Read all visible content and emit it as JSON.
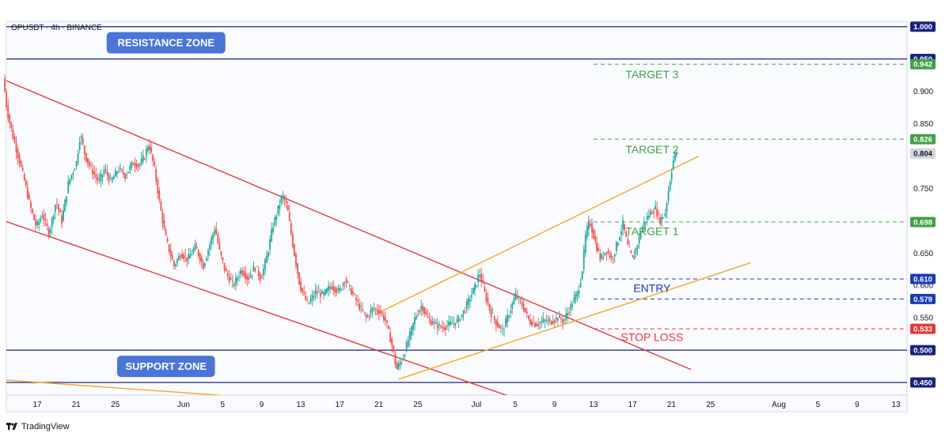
{
  "header": {
    "symbol": "OPUSDT · 4h · BINANCE"
  },
  "footer": {
    "brand": "TradingView",
    "logo_icon": "tradingview-logo-icon"
  },
  "chart_data": {
    "type": "candlestick",
    "title": "OPUSDT · 4h · BINANCE",
    "price_axis": {
      "ylim": [
        0.4305,
        1.0082
      ],
      "ticks": [
        "0.900",
        "0.850",
        "0.750",
        "0.650",
        "0.600",
        "0.550"
      ]
    },
    "time_axis": {
      "ticks": [
        {
          "label": "17",
          "day": 0
        },
        {
          "label": "21",
          "day": 4
        },
        {
          "label": "25",
          "day": 8
        },
        {
          "label": "Jun",
          "day": 15
        },
        {
          "label": "5",
          "day": 19
        },
        {
          "label": "9",
          "day": 23
        },
        {
          "label": "13",
          "day": 27
        },
        {
          "label": "17",
          "day": 31
        },
        {
          "label": "21",
          "day": 35
        },
        {
          "label": "25",
          "day": 39
        },
        {
          "label": "Jul",
          "day": 45
        },
        {
          "label": "5",
          "day": 49
        },
        {
          "label": "9",
          "day": 53
        },
        {
          "label": "13",
          "day": 57
        },
        {
          "label": "17",
          "day": 61
        },
        {
          "label": "21",
          "day": 65
        },
        {
          "label": "25",
          "day": 69
        },
        {
          "label": "Aug",
          "day": 76
        },
        {
          "label": "5",
          "day": 80
        },
        {
          "label": "9",
          "day": 84
        },
        {
          "label": "13",
          "day": 88
        }
      ]
    },
    "price_series": [
      [
        -3.4,
        0.92
      ],
      [
        -3.0,
        0.87
      ],
      [
        -2.4,
        0.83
      ],
      [
        -1.7,
        0.79
      ],
      [
        -1.2,
        0.76
      ],
      [
        -0.6,
        0.72
      ],
      [
        0.0,
        0.69
      ],
      [
        0.6,
        0.71
      ],
      [
        1.3,
        0.68
      ],
      [
        2.0,
        0.73
      ],
      [
        2.6,
        0.7
      ],
      [
        3.3,
        0.76
      ],
      [
        4.1,
        0.79
      ],
      [
        4.5,
        0.835
      ],
      [
        5.0,
        0.8
      ],
      [
        5.6,
        0.78
      ],
      [
        6.4,
        0.76
      ],
      [
        7.0,
        0.78
      ],
      [
        7.6,
        0.76
      ],
      [
        8.4,
        0.78
      ],
      [
        9.1,
        0.77
      ],
      [
        9.9,
        0.79
      ],
      [
        10.5,
        0.785
      ],
      [
        11.1,
        0.8
      ],
      [
        11.5,
        0.82
      ],
      [
        12.1,
        0.78
      ],
      [
        12.7,
        0.72
      ],
      [
        13.3,
        0.67
      ],
      [
        14.1,
        0.63
      ],
      [
        14.8,
        0.65
      ],
      [
        15.5,
        0.64
      ],
      [
        16.3,
        0.66
      ],
      [
        17.1,
        0.63
      ],
      [
        17.7,
        0.66
      ],
      [
        18.3,
        0.69
      ],
      [
        18.8,
        0.65
      ],
      [
        19.4,
        0.62
      ],
      [
        20.2,
        0.6
      ],
      [
        21.0,
        0.625
      ],
      [
        21.7,
        0.61
      ],
      [
        22.4,
        0.63
      ],
      [
        23.0,
        0.61
      ],
      [
        23.7,
        0.65
      ],
      [
        24.2,
        0.69
      ],
      [
        24.8,
        0.72
      ],
      [
        25.2,
        0.74
      ],
      [
        25.7,
        0.72
      ],
      [
        26.3,
        0.66
      ],
      [
        27.0,
        0.6
      ],
      [
        27.8,
        0.57
      ],
      [
        28.6,
        0.59
      ],
      [
        29.4,
        0.585
      ],
      [
        30.2,
        0.6
      ],
      [
        31.0,
        0.59
      ],
      [
        31.6,
        0.61
      ],
      [
        32.3,
        0.59
      ],
      [
        33.0,
        0.57
      ],
      [
        33.8,
        0.55
      ],
      [
        34.5,
        0.565
      ],
      [
        35.2,
        0.56
      ],
      [
        35.8,
        0.545
      ],
      [
        36.4,
        0.51
      ],
      [
        36.9,
        0.47
      ],
      [
        37.6,
        0.49
      ],
      [
        38.2,
        0.52
      ],
      [
        38.8,
        0.55
      ],
      [
        39.5,
        0.57
      ],
      [
        40.0,
        0.55
      ],
      [
        40.8,
        0.54
      ],
      [
        41.6,
        0.535
      ],
      [
        42.4,
        0.54
      ],
      [
        43.2,
        0.545
      ],
      [
        43.8,
        0.56
      ],
      [
        44.4,
        0.58
      ],
      [
        45.0,
        0.6
      ],
      [
        45.4,
        0.62
      ],
      [
        45.9,
        0.59
      ],
      [
        46.5,
        0.56
      ],
      [
        47.2,
        0.54
      ],
      [
        47.8,
        0.53
      ],
      [
        48.5,
        0.56
      ],
      [
        49.1,
        0.585
      ],
      [
        49.8,
        0.57
      ],
      [
        50.5,
        0.545
      ],
      [
        51.2,
        0.54
      ],
      [
        52.0,
        0.545
      ],
      [
        52.8,
        0.545
      ],
      [
        53.4,
        0.55
      ],
      [
        54.0,
        0.545
      ],
      [
        54.5,
        0.56
      ],
      [
        55.0,
        0.575
      ],
      [
        55.5,
        0.59
      ],
      [
        55.9,
        0.62
      ],
      [
        56.3,
        0.68
      ],
      [
        56.7,
        0.7
      ],
      [
        57.3,
        0.665
      ],
      [
        57.8,
        0.64
      ],
      [
        58.4,
        0.655
      ],
      [
        59.0,
        0.64
      ],
      [
        59.6,
        0.67
      ],
      [
        60.1,
        0.695
      ],
      [
        60.6,
        0.66
      ],
      [
        61.1,
        0.64
      ],
      [
        61.7,
        0.67
      ],
      [
        62.2,
        0.695
      ],
      [
        62.8,
        0.71
      ],
      [
        63.4,
        0.72
      ],
      [
        63.9,
        0.7
      ],
      [
        64.4,
        0.71
      ],
      [
        64.8,
        0.75
      ],
      [
        65.2,
        0.79
      ],
      [
        65.6,
        0.81
      ]
    ],
    "current_price": 0.804,
    "levels": [
      {
        "name": "resistance-top",
        "value": 1.0,
        "label": "1.000",
        "style": "solid",
        "color": "#1a237e"
      },
      {
        "name": "resistance-bottom",
        "value": 0.95,
        "label": "0.950",
        "style": "solid",
        "color": "#1a237e"
      },
      {
        "name": "target-3",
        "value": 0.942,
        "label": "0.942",
        "style": "dashed",
        "color": "#43a047",
        "from_day": 57
      },
      {
        "name": "target-2",
        "value": 0.826,
        "label": "0.826",
        "style": "dashed",
        "color": "#43a047",
        "from_day": 57
      },
      {
        "name": "target-1",
        "value": 0.698,
        "label": "0.698",
        "style": "dashed",
        "color": "#43a047",
        "from_day": 57
      },
      {
        "name": "entry-top",
        "value": 0.61,
        "label": "0.610",
        "style": "dashed",
        "color": "#1a3bb3",
        "from_day": 57
      },
      {
        "name": "entry-bottom",
        "value": 0.579,
        "label": "0.579",
        "style": "dashed",
        "color": "#1a3bb3",
        "from_day": 57
      },
      {
        "name": "stop-loss",
        "value": 0.533,
        "label": "0.533",
        "style": "dashed",
        "color": "#e53935",
        "from_day": 57
      },
      {
        "name": "support-top",
        "value": 0.5,
        "label": "0.500",
        "style": "solid",
        "color": "#1a237e"
      },
      {
        "name": "support-bottom",
        "value": 0.45,
        "label": "0.450",
        "style": "solid",
        "color": "#1a237e"
      }
    ],
    "trendlines": [
      {
        "name": "channel-upper",
        "color": "#e53935",
        "points": [
          [
            -3.4,
            0.918
          ],
          [
            67.0,
            0.47
          ]
        ]
      },
      {
        "name": "channel-lower",
        "color": "#e53935",
        "points": [
          [
            -3.4,
            0.7
          ],
          [
            48.5,
            0.428
          ]
        ]
      },
      {
        "name": "rising-upper",
        "color": "#f5a623",
        "points": [
          [
            34.6,
            0.555
          ],
          [
            67.8,
            0.8
          ]
        ]
      },
      {
        "name": "rising-lower",
        "color": "#f5a623",
        "points": [
          [
            37.0,
            0.455
          ],
          [
            73.1,
            0.635
          ]
        ]
      },
      {
        "name": "old-support",
        "color": "#f5a623",
        "points": [
          [
            -3.4,
            0.454
          ],
          [
            19.0,
            0.43
          ]
        ]
      }
    ],
    "annotations": [
      {
        "name": "target-3-label",
        "text": "TARGET 3",
        "day": 63.0,
        "value": 0.92,
        "color": "#43a047"
      },
      {
        "name": "target-2-label",
        "text": "TARGET 2",
        "day": 63.0,
        "value": 0.804,
        "color": "#43a047"
      },
      {
        "name": "target-1-label",
        "text": "TARGET 1",
        "day": 63.0,
        "value": 0.678,
        "color": "#43a047"
      },
      {
        "name": "entry-label",
        "text": "ENTRY",
        "day": 63.0,
        "value": 0.59,
        "color": "#1a3bb3"
      },
      {
        "name": "stop-loss-label",
        "text": "STOP LOSS",
        "day": 63.0,
        "value": 0.514,
        "color": "#e53935"
      }
    ],
    "zones": [
      {
        "name": "resistance-zone-label",
        "text": "RESISTANCE ZONE",
        "day": 13.2,
        "value": 0.975,
        "color": "#4a74d6"
      },
      {
        "name": "support-zone-label",
        "text": "SUPPORT ZONE",
        "day": 13.2,
        "value": 0.475,
        "color": "#4a74d6"
      }
    ]
  }
}
